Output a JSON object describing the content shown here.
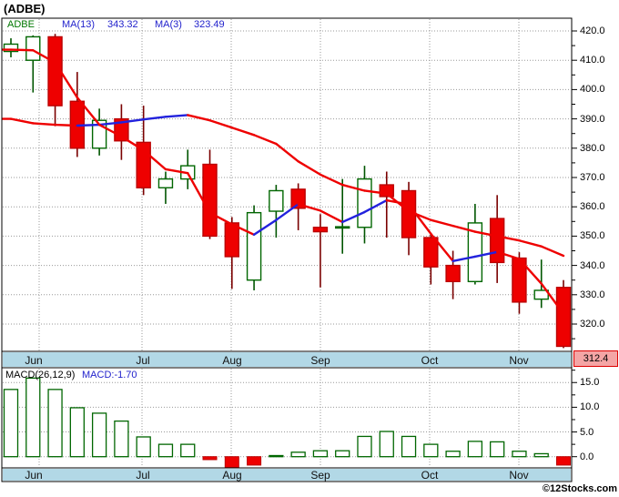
{
  "page": {
    "title": "(ADBE)",
    "watermark": "©12Stocks.com"
  },
  "price_panel": {
    "legend": {
      "symbol": "ADBE",
      "ma13_label": "MA(13)",
      "ma13_value": "343.32",
      "ma3_label": "MA(3)",
      "ma3_value": "323.49"
    },
    "last_price_label": "312.4",
    "y_tick_labels": [
      "420.0",
      "410.0",
      "400.0",
      "390.0",
      "380.0",
      "370.0",
      "360.0",
      "350.0",
      "340.0",
      "330.0",
      "320.0"
    ],
    "month_labels": [
      "Jun",
      "Jul",
      "Aug",
      "Sep",
      "Oct",
      "Nov"
    ]
  },
  "macd_panel": {
    "legend_name": "MACD(26,12,9)",
    "legend_value": "MACD:-1.70",
    "y_tick_labels": [
      "15.0",
      "10.0",
      "5.0",
      "0.0"
    ],
    "month_labels": [
      "Jun",
      "Jul",
      "Aug",
      "Sep",
      "Oct",
      "Nov"
    ]
  },
  "colors": {
    "up_outline": "#006600",
    "up_wick": "#005500",
    "down_fill": "#EE0000",
    "down_outline": "#BB0000",
    "down_wick": "#7A0000",
    "ma_rising": "#2222DD",
    "ma_falling": "#EE0000",
    "legend_text": "#2222CC",
    "symbol_text": "#007700",
    "month_strip_bg": "#B2D8E6",
    "last_price_bg": "#F4A5A5",
    "last_price_border": "#DD0000",
    "grid": "#999999"
  },
  "chart_data": [
    {
      "type": "candlestick",
      "title": "(ADBE)",
      "timeframe": "weekly",
      "months": [
        "Jun",
        "Jul",
        "Aug",
        "Sep",
        "Oct",
        "Nov"
      ],
      "ylim": [
        311,
        424
      ],
      "y_ticks": [
        420,
        410,
        400,
        390,
        380,
        370,
        360,
        350,
        340,
        330,
        320
      ],
      "last_price": 312.4,
      "candles_ohlc": [
        [
          413,
          417.5,
          411,
          415.5
        ],
        [
          410,
          418.5,
          399,
          418
        ],
        [
          418,
          419,
          387.5,
          394.5
        ],
        [
          396,
          406,
          377,
          380
        ],
        [
          380,
          393.5,
          377.5,
          389.5
        ],
        [
          390,
          395,
          376,
          382.5
        ],
        [
          382,
          394.5,
          364,
          366.5
        ],
        [
          366.5,
          372,
          361,
          369.5
        ],
        [
          369.5,
          379.5,
          366,
          374
        ],
        [
          374.5,
          379.5,
          349,
          350
        ],
        [
          354.5,
          356.5,
          332,
          343
        ],
        [
          335,
          360.5,
          331.5,
          358
        ],
        [
          358.5,
          367.5,
          349.5,
          365.5
        ],
        [
          366,
          368,
          352,
          359.5
        ],
        [
          353,
          357.5,
          332.5,
          351.5
        ],
        [
          352.8,
          369.5,
          344,
          353.2
        ],
        [
          353,
          374,
          347.5,
          369.5
        ],
        [
          367.5,
          372,
          349.5,
          363.5
        ],
        [
          365.5,
          368.5,
          343.5,
          349.5
        ],
        [
          349.5,
          351,
          333.5,
          339.5
        ],
        [
          340,
          345,
          328.5,
          334.5
        ],
        [
          334.5,
          361,
          333.5,
          354.5
        ],
        [
          356,
          364,
          334,
          341
        ],
        [
          342.5,
          344.5,
          323.5,
          327.5
        ],
        [
          328.5,
          342,
          325.5,
          331.5
        ],
        [
          332.5,
          335,
          311.8,
          312.4
        ]
      ],
      "ma13": {
        "label": "MA(13)",
        "current": 343.32,
        "values": [
          390,
          388.5,
          388,
          387.7,
          388,
          388.8,
          389.8,
          390.7,
          391.3,
          389.5,
          387,
          384.5,
          381.5,
          375.5,
          371,
          367.5,
          365.5,
          364.5,
          358.5,
          355.5,
          353.5,
          351.5,
          350,
          348.5,
          346.5,
          343.3
        ]
      },
      "ma3": {
        "label": "MA(3)",
        "current": 323.49,
        "values": [
          413.6,
          413.4,
          409.2,
          397.3,
          388,
          384,
          379.3,
          372.8,
          371.5,
          358,
          354,
          350.5,
          355.5,
          360.9,
          358.7,
          354.8,
          358.2,
          362.2,
          360.8,
          350.8,
          341.5,
          343,
          344.6,
          342.2,
          333.8,
          323.5
        ]
      },
      "line_color_rule": "segments drawn blue when rising, red when falling"
    },
    {
      "type": "bar",
      "name": "MACD(26,12,9)",
      "current": -1.7,
      "y_ticks": [
        15,
        10,
        5,
        0
      ],
      "ylim": [
        -2.2,
        17.8
      ],
      "bar_style": "hollow green outline when >= 0, solid red when < 0",
      "values": [
        13.6,
        15.9,
        13.6,
        9.9,
        8.8,
        7.2,
        4.0,
        2.5,
        2.5,
        -0.6,
        -2.2,
        -1.7,
        0.2,
        0.9,
        1.2,
        1.2,
        4.1,
        5.1,
        4.1,
        2.5,
        1.1,
        3.1,
        3.0,
        1.1,
        0.6,
        -1.7
      ]
    }
  ]
}
